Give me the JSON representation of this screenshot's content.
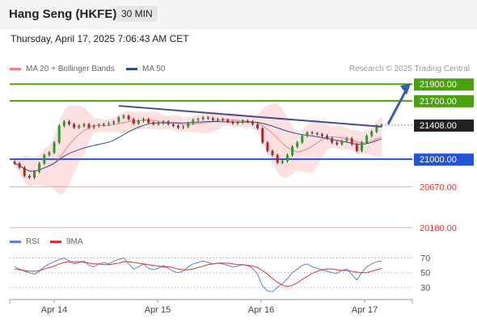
{
  "header": {
    "title": "Hang Seng (HKFE)",
    "timeframe": "30 MIN"
  },
  "datetime": "Thursday, April 17, 2025 7:06:43 AM CET",
  "legend": {
    "items": [
      {
        "label": "MA 20 + Bollinger Bands",
        "color": "#f08080"
      },
      {
        "label": "MA 50",
        "color": "#2e4f8f"
      }
    ],
    "credit": "Research © 2025 Trading Central"
  },
  "rsi_legend": {
    "items": [
      {
        "label": "RSI",
        "color": "#5b7fd6"
      },
      {
        "label": "9MA",
        "color": "#e03030"
      }
    ]
  },
  "colors": {
    "resistance": "#4aa10e",
    "pivot": "#2454d6",
    "support": "#f19c9c",
    "last": "#222222",
    "arrow": "#2f5fbf"
  },
  "chart_data": [
    {
      "type": "candlestick",
      "x_tick_labels": [
        "Apr 14",
        "Apr 15",
        "Apr 16",
        "Apr 17"
      ],
      "ylim": [
        20150,
        21960
      ],
      "levels": [
        {
          "label": "21900.00",
          "value": 21900,
          "kind": "resistance"
        },
        {
          "label": "21700.00",
          "value": 21700,
          "kind": "resistance"
        },
        {
          "label": "21408.00",
          "value": 21408,
          "kind": "last"
        },
        {
          "label": "21000.00",
          "value": 21000,
          "kind": "pivot"
        },
        {
          "label": "20670.00",
          "value": 20670,
          "kind": "support"
        },
        {
          "label": "20180.00",
          "value": 20180,
          "kind": "support"
        }
      ],
      "close_series": [
        20950,
        20900,
        20800,
        20780,
        20850,
        20950,
        21050,
        21080,
        21200,
        21400,
        21450,
        21420,
        21380,
        21400,
        21420,
        21380,
        21400,
        21410,
        21420,
        21430,
        21450,
        21500,
        21520,
        21480,
        21430,
        21460,
        21480,
        21440,
        21420,
        21430,
        21450,
        21420,
        21400,
        21380,
        21390,
        21430,
        21470,
        21480,
        21500,
        21490,
        21470,
        21480,
        21470,
        21450,
        21430,
        21440,
        21460,
        21450,
        21420,
        21370,
        21200,
        21100,
        21050,
        20960,
        20980,
        21050,
        21150,
        21200,
        21280,
        21320,
        21310,
        21300,
        21280,
        21250,
        21200,
        21180,
        21220,
        21250,
        21180,
        21100,
        21200,
        21280,
        21330,
        21400,
        21408
      ]
    },
    {
      "type": "line",
      "name": "RSI",
      "yticks": [
        70,
        50,
        30
      ],
      "series": [
        {
          "name": "RSI",
          "values": [
            58,
            55,
            52,
            50,
            48,
            52,
            58,
            62,
            65,
            68,
            70,
            66,
            62,
            64,
            66,
            60,
            58,
            62,
            64,
            62,
            66,
            68,
            70,
            62,
            55,
            58,
            62,
            56,
            54,
            56,
            60,
            56,
            52,
            50,
            52,
            58,
            62,
            64,
            66,
            64,
            62,
            63,
            62,
            60,
            58,
            59,
            61,
            60,
            56,
            48,
            32,
            25,
            24,
            30,
            35,
            42,
            50,
            55,
            60,
            62,
            58,
            56,
            54,
            52,
            50,
            49,
            53,
            55,
            48,
            40,
            50,
            58,
            62,
            65,
            66
          ]
        },
        {
          "name": "9MA",
          "values": [
            55,
            54,
            53,
            52,
            52,
            53,
            55,
            57,
            59,
            62,
            64,
            65,
            65,
            65,
            64,
            63,
            62,
            62,
            61,
            61,
            62,
            63,
            65,
            65,
            64,
            63,
            62,
            61,
            60,
            59,
            58,
            58,
            57,
            55,
            54,
            54,
            55,
            57,
            59,
            61,
            62,
            63,
            63,
            63,
            62,
            61,
            61,
            60,
            59,
            57,
            53,
            48,
            42,
            37,
            33,
            31,
            33,
            36,
            41,
            45,
            49,
            52,
            54,
            55,
            55,
            54,
            53,
            53,
            52,
            51,
            50,
            50,
            52,
            54,
            56
          ]
        }
      ]
    }
  ]
}
